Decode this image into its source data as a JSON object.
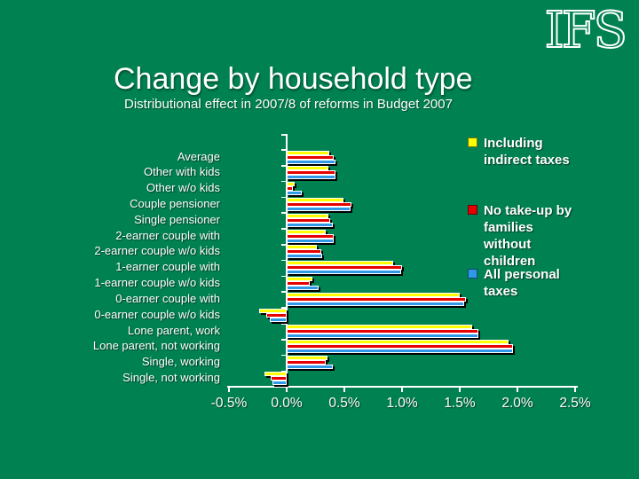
{
  "slide": {
    "logo": "IFS",
    "title": "Change by household type",
    "subtitle": "Distributional effect in 2007/8 of reforms in Budget 2007",
    "background_color": "#008151",
    "text_color": "#ffffff"
  },
  "chart_data": {
    "type": "bar",
    "orientation": "horizontal",
    "title": "",
    "xlabel": "",
    "ylabel": "",
    "xlim": [
      -0.5,
      2.5
    ],
    "x_tick_labels": [
      "-0.5%",
      "0.0%",
      "0.5%",
      "1.0%",
      "1.5%",
      "2.0%",
      "2.5%"
    ],
    "x_tick_values": [
      -0.5,
      0.0,
      0.5,
      1.0,
      1.5,
      2.0,
      2.5
    ],
    "grid": false,
    "legend_position": "right",
    "axis_color": "#ffffff",
    "bar_shadow_color": "#000000",
    "categories": [
      "Average",
      "Other with kids",
      "Other w/o kids",
      "Couple pensioner",
      "Single pensioner",
      "2-earner couple with",
      "2-earner couple w/o kids",
      "1-earner couple with",
      "1-earner couple w/o kids",
      "0-earner couple with",
      "0-earner couple w/o kids",
      "Lone parent, work",
      "Lone parent, not working",
      "Single, working",
      "Single, not working"
    ],
    "series": [
      {
        "name": "Including indirect taxes",
        "color": "#ffff00",
        "values": [
          0.37,
          0.36,
          0.07,
          0.49,
          0.36,
          0.34,
          0.26,
          0.92,
          0.22,
          1.5,
          -0.24,
          1.61,
          1.92,
          0.35,
          -0.19
        ]
      },
      {
        "name": "No take-up by families without children",
        "color": "#e60000",
        "values": [
          0.41,
          0.42,
          0.05,
          0.56,
          0.38,
          0.41,
          0.3,
          1.0,
          0.2,
          1.55,
          -0.18,
          1.66,
          1.96,
          0.34,
          -0.14
        ]
      },
      {
        "name": "All personal taxes",
        "color": "#2f99e8",
        "values": [
          0.42,
          0.42,
          0.13,
          0.55,
          0.4,
          0.41,
          0.31,
          0.99,
          0.28,
          1.54,
          -0.15,
          1.66,
          1.96,
          0.4,
          -0.12
        ]
      }
    ]
  }
}
